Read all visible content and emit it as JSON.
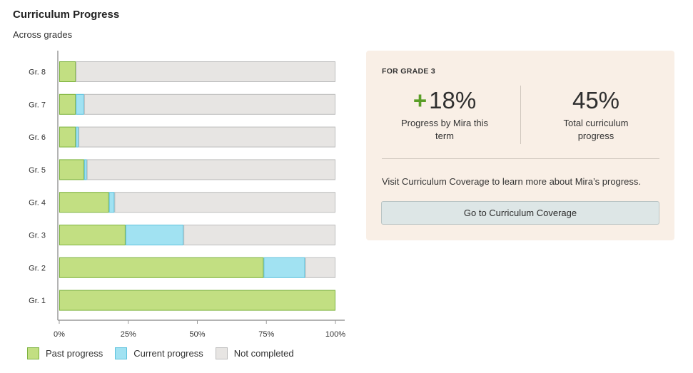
{
  "header": {
    "title": "Curriculum Progress",
    "subtitle": "Across grades"
  },
  "colors": {
    "past": "#c2df82",
    "past_border": "#7db33f",
    "current": "#a1e2f2",
    "current_border": "#5fc2dd",
    "not_completed": "#e7e5e3",
    "not_completed_border": "#bdbdbd",
    "axis": "#9a9a9a",
    "card_bg": "#f9efe6",
    "accent_plus": "#5a9e27"
  },
  "chart_data": {
    "type": "bar",
    "orientation": "horizontal",
    "stacked": true,
    "categories": [
      "Gr. 8",
      "Gr. 7",
      "Gr. 6",
      "Gr. 5",
      "Gr. 4",
      "Gr. 3",
      "Gr. 2",
      "Gr. 1"
    ],
    "series": [
      {
        "name": "Past progress",
        "values": [
          6,
          6,
          6,
          9,
          18,
          24,
          74,
          100
        ]
      },
      {
        "name": "Current progress",
        "values": [
          0,
          3,
          1,
          1,
          2,
          21,
          15,
          0
        ]
      },
      {
        "name": "Not completed",
        "values": [
          94,
          91,
          93,
          90,
          80,
          55,
          11,
          0
        ]
      }
    ],
    "xlim": [
      0,
      100
    ],
    "x_ticks": [
      "0%",
      "25%",
      "50%",
      "75%",
      "100%"
    ],
    "x_tick_values": [
      0,
      25,
      50,
      75,
      100
    ],
    "grid": false,
    "legend_position": "bottom-left"
  },
  "legend": {
    "past": "Past progress",
    "current": "Current progress",
    "not_completed": "Not completed"
  },
  "card": {
    "eyebrow": "FOR GRADE 3",
    "left_stat": {
      "sign": "+",
      "value": "18%",
      "caption": "Progress by Mira this term"
    },
    "right_stat": {
      "value": "45%",
      "caption": "Total curriculum progress"
    },
    "message": "Visit Curriculum Coverage to learn more about Mira’s progress.",
    "button_label": "Go to Curriculum Coverage"
  }
}
